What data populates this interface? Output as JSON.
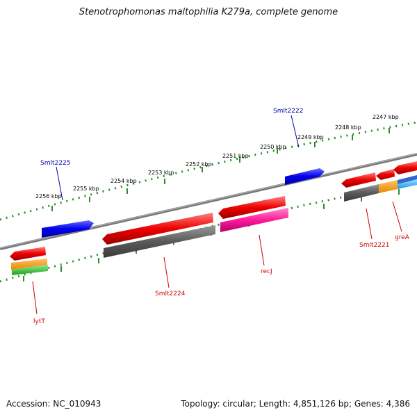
{
  "title": "Stenotrophomonas maltophilia K279a, complete genome",
  "footer": {
    "accession": "Accession: NC_010943",
    "summary": "Topology: circular; Length: 4,851,126 bp; Genes: 4,386"
  },
  "colors": {
    "backbone": "#8c8c8c",
    "ruler": "#2e8b2e",
    "forward_cds": "#0000ee",
    "reverse_cds": "#ee0000",
    "rna": "#666666",
    "cog_orange": "#ff9900",
    "cog_green": "#33cc33",
    "cog_magenta": "#ff1a9c",
    "cog_cyan": "#33bbee",
    "label_blue": "#0000aa",
    "label_red": "#cc0000"
  },
  "ruler_labels": [
    "2247 kbp",
    "2248 kbp",
    "2249 kbp",
    "2250 kbp",
    "2251 kbp",
    "2252 kbp",
    "2253 kbp",
    "2254 kbp",
    "2255 kbp",
    "2256 kbp"
  ],
  "gene_labels": {
    "smlt2222": "Smlt2222",
    "smlt2225": "Smlt2225",
    "lytT": "lytT",
    "smlt2224": "Smlt2224",
    "recJ": "recJ",
    "smlt2221": "Smlt2221",
    "greA": "greA"
  }
}
